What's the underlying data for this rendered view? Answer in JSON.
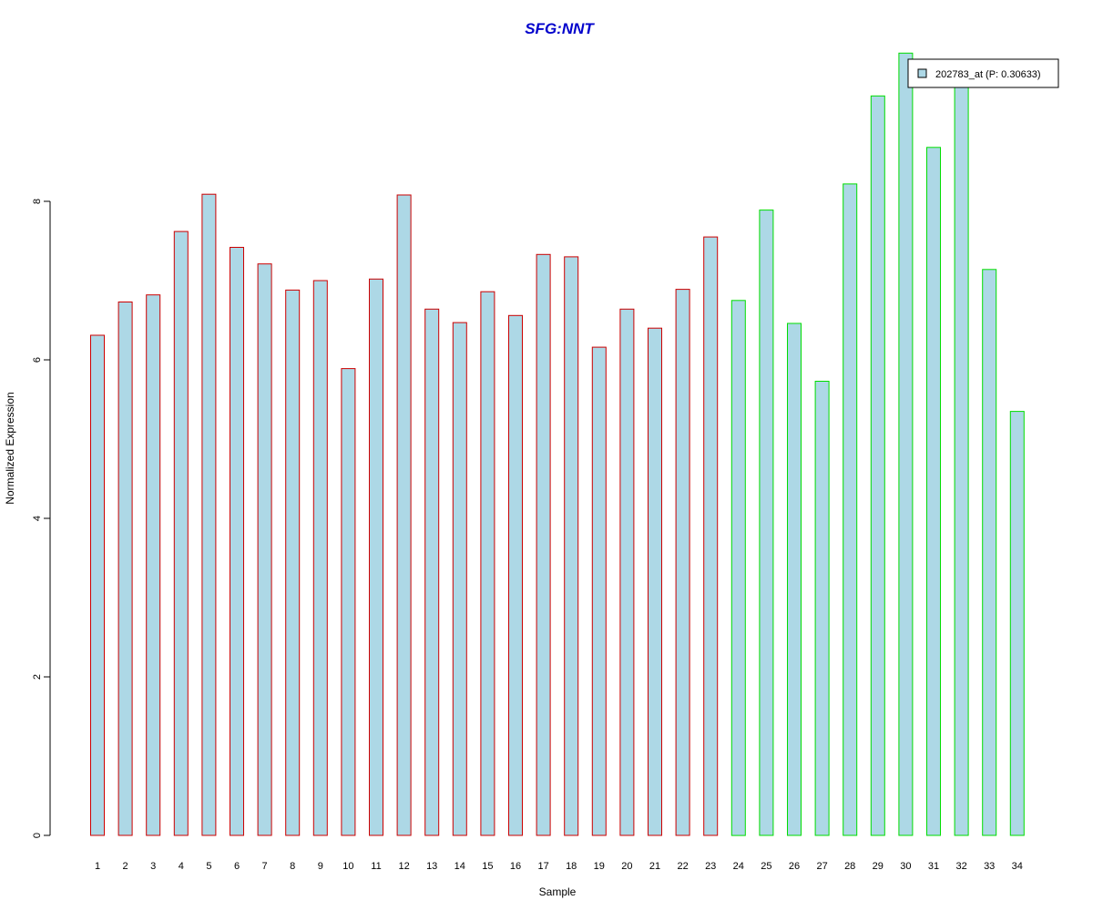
{
  "chart_data": {
    "type": "bar",
    "title": "SFG:NNT",
    "xlabel": "Sample",
    "ylabel": "Normalized Expression",
    "categories": [
      "1",
      "2",
      "3",
      "4",
      "5",
      "6",
      "7",
      "8",
      "9",
      "10",
      "11",
      "12",
      "13",
      "14",
      "15",
      "16",
      "17",
      "18",
      "19",
      "20",
      "21",
      "22",
      "23",
      "24",
      "25",
      "26",
      "27",
      "28",
      "29",
      "30",
      "31",
      "32",
      "33",
      "34"
    ],
    "values": [
      6.31,
      6.73,
      6.82,
      7.62,
      8.09,
      7.42,
      7.21,
      6.88,
      7.0,
      5.89,
      7.02,
      8.08,
      6.64,
      6.47,
      6.86,
      6.56,
      7.33,
      7.3,
      6.16,
      6.64,
      6.4,
      6.89,
      7.55,
      6.75,
      7.89,
      6.46,
      5.73,
      8.22,
      9.33,
      9.87,
      8.68,
      9.5,
      7.14,
      5.35
    ],
    "groups": [
      "red",
      "red",
      "red",
      "red",
      "red",
      "red",
      "red",
      "red",
      "red",
      "red",
      "red",
      "red",
      "red",
      "red",
      "red",
      "red",
      "red",
      "red",
      "red",
      "red",
      "red",
      "red",
      "red",
      "green",
      "green",
      "green",
      "green",
      "green",
      "green",
      "green",
      "green",
      "green",
      "green",
      "green"
    ],
    "yticks": [
      0,
      2,
      4,
      6,
      8
    ],
    "ylim": [
      0,
      9.87
    ],
    "legend": {
      "label": "202783_at (P: 0.30633)",
      "position": "top-right"
    },
    "grid": false
  },
  "colors": {
    "title": "#0000cc",
    "bar_fill": "#add8e6",
    "group_red": "#cc0000",
    "group_green": "#00dd00"
  }
}
